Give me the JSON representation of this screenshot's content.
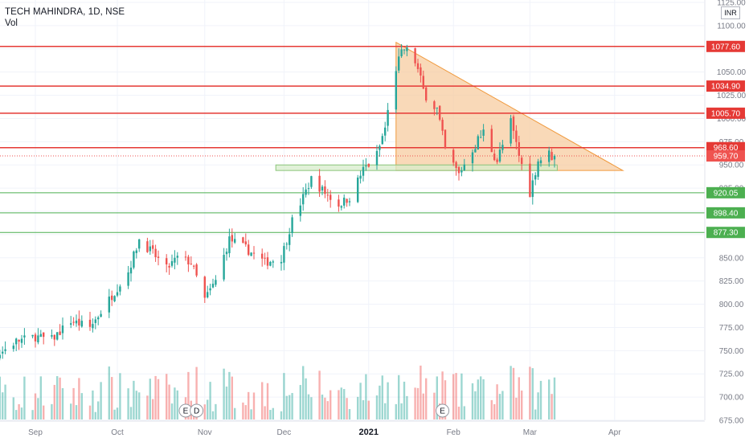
{
  "header": {
    "symbol": "TECH MAHINDRA, 1D, NSE",
    "volume_label": "Vol",
    "currency": "INR"
  },
  "colors": {
    "up": "#26a69a",
    "down": "#ef5350",
    "resistance": "#e53935",
    "support": "#4caf50",
    "pattern_fill": "#f7c99a",
    "pattern_stroke": "#f09a3e",
    "zone_fill": "#d7eccb",
    "zone_stroke": "#8bc57a"
  },
  "chart_data": {
    "type": "candlestick",
    "ylim": [
      675,
      1125
    ],
    "y_ticks": [
      675,
      700,
      725,
      750,
      775,
      800,
      825,
      850,
      875,
      900,
      925,
      950,
      975,
      1000,
      1025,
      1050,
      1075,
      1100,
      1125
    ],
    "y_tick_labels": [
      "675.00",
      "700.00",
      "725.00",
      "750.00",
      "775.00",
      "800.00",
      "825.00",
      "850.00",
      "",
      "",
      "925.00",
      "950.00",
      "975.00",
      "1000.00",
      "1025.00",
      "1050.00",
      "",
      "1100.00",
      "1125.00"
    ],
    "x_labels": [
      {
        "label": "Sep",
        "date": "2020-09-01"
      },
      {
        "label": "Oct",
        "date": "2020-10-01"
      },
      {
        "label": "Nov",
        "date": "2020-11-02"
      },
      {
        "label": "Dec",
        "date": "2020-12-01"
      },
      {
        "label": "2021",
        "date": "2021-01-01"
      },
      {
        "label": "Feb",
        "date": "2021-02-01"
      },
      {
        "label": "Mar",
        "date": "2021-03-01"
      },
      {
        "label": "Apr",
        "date": "2021-04-01"
      }
    ],
    "levels": [
      {
        "value": 1077.6,
        "label": "1077.60",
        "kind": "resistance"
      },
      {
        "value": 1034.9,
        "label": "1034.90",
        "kind": "resistance"
      },
      {
        "value": 1005.7,
        "label": "1005.70",
        "kind": "resistance"
      },
      {
        "value": 968.6,
        "label": "968.60",
        "kind": "resistance"
      },
      {
        "value": 920.05,
        "label": "920.05",
        "kind": "support"
      },
      {
        "value": 898.4,
        "label": "898.40",
        "kind": "support"
      },
      {
        "value": 877.3,
        "label": "877.30",
        "kind": "support"
      }
    ],
    "last_price": {
      "value": 959.7,
      "label": "959.70"
    },
    "pattern_triangle": [
      [
        "2021-01-11",
        1082
      ],
      [
        "2021-04-04",
        944
      ],
      [
        "2021-01-11",
        944
      ]
    ],
    "support_zone": {
      "from": "2020-11-28",
      "to": "2021-03-11",
      "low": 944,
      "high": 950
    },
    "events": [
      {
        "date": "2020-10-26",
        "label": "E"
      },
      {
        "date": "2020-10-30",
        "label": "D"
      },
      {
        "date": "2021-01-28",
        "label": "E"
      }
    ],
    "price_anchors": [
      [
        "2020-08-03",
        730
      ],
      [
        "2020-08-10",
        738
      ],
      [
        "2020-08-18",
        745
      ],
      [
        "2020-08-25",
        760
      ],
      [
        "2020-09-01",
        765
      ],
      [
        "2020-09-07",
        762
      ],
      [
        "2020-09-14",
        782
      ],
      [
        "2020-09-21",
        775
      ],
      [
        "2020-09-28",
        805
      ],
      [
        "2020-10-05",
        835
      ],
      [
        "2020-10-09",
        870
      ],
      [
        "2020-10-14",
        855
      ],
      [
        "2020-10-19",
        838
      ],
      [
        "2020-10-23",
        850
      ],
      [
        "2020-10-28",
        845
      ],
      [
        "2020-11-02",
        805
      ],
      [
        "2020-11-06",
        825
      ],
      [
        "2020-11-11",
        870
      ],
      [
        "2020-11-17",
        860
      ],
      [
        "2020-11-24",
        845
      ],
      [
        "2020-11-30",
        850
      ],
      [
        "2020-12-04",
        890
      ],
      [
        "2020-12-08",
        915
      ],
      [
        "2020-12-11",
        935
      ],
      [
        "2020-12-16",
        920
      ],
      [
        "2020-12-21",
        907
      ],
      [
        "2020-12-25",
        915
      ],
      [
        "2020-12-30",
        945
      ],
      [
        "2021-01-04",
        960
      ],
      [
        "2021-01-07",
        990
      ],
      [
        "2021-01-11",
        1055
      ],
      [
        "2021-01-14",
        1075
      ],
      [
        "2021-01-18",
        1062
      ],
      [
        "2021-01-21",
        1030
      ],
      [
        "2021-01-26",
        1010
      ],
      [
        "2021-01-29",
        965
      ],
      [
        "2021-02-03",
        940
      ],
      [
        "2021-02-08",
        968
      ],
      [
        "2021-02-12",
        985
      ],
      [
        "2021-02-17",
        955
      ],
      [
        "2021-02-22",
        995
      ],
      [
        "2021-02-25",
        960
      ],
      [
        "2021-03-01",
        920
      ],
      [
        "2021-03-04",
        955
      ],
      [
        "2021-03-08",
        961
      ],
      [
        "2021-03-10",
        959.7
      ]
    ],
    "volume_note": "volume bars shown in lower pane"
  }
}
